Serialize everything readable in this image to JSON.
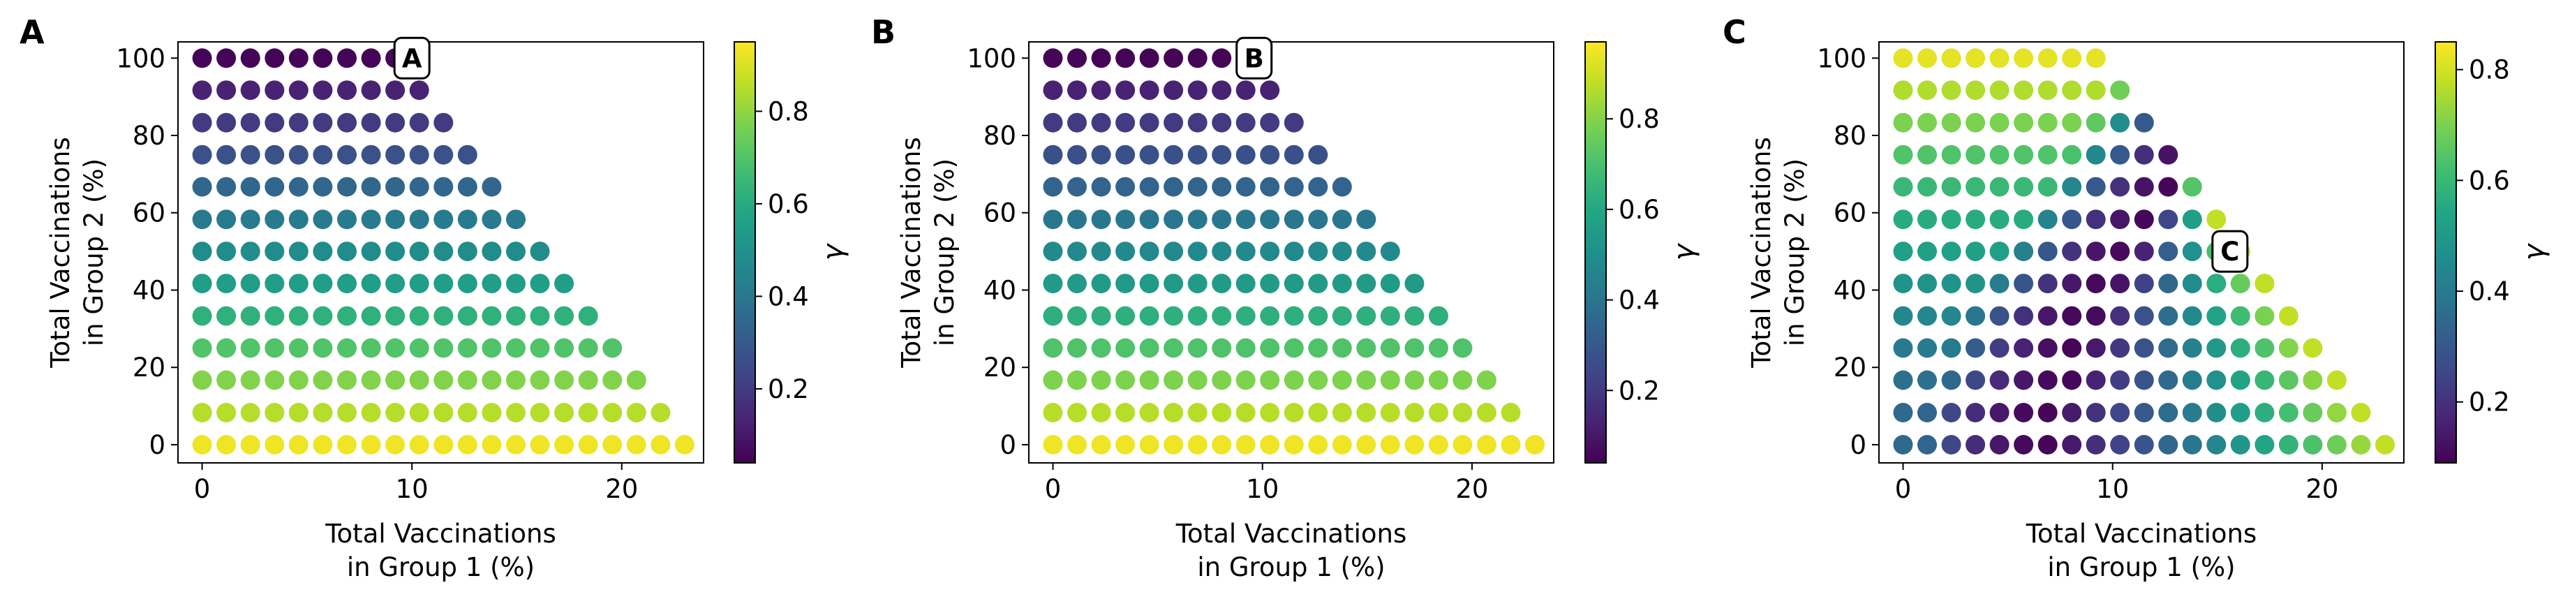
{
  "chart_data": [
    {
      "type": "scatter",
      "panel_label": "A",
      "badge": "A",
      "badge_at": [
        10,
        100
      ],
      "xlabel": [
        "Total Vaccinations",
        "in Group 1 (%)"
      ],
      "ylabel": [
        "Total Vaccinations",
        "in Group 2 (%)"
      ],
      "xticks": [
        0,
        10,
        20
      ],
      "yticks": [
        0,
        20,
        40,
        60,
        80,
        100
      ],
      "xlim": [
        -1.15,
        23.9
      ],
      "ylim": [
        -4.7,
        104.2
      ],
      "colorbar": {
        "label": "γ",
        "ticks": [
          0.2,
          0.4,
          0.6,
          0.8
        ],
        "range": [
          0.04,
          0.95
        ]
      },
      "colormap": "viridis",
      "grid": false,
      "legend": "none",
      "x_step": 1.15,
      "y_values": [
        0,
        8.3,
        16.7,
        25,
        33.3,
        41.7,
        50,
        58.3,
        66.7,
        75,
        83.3,
        91.7,
        100
      ],
      "x_max_per_row": [
        23,
        21.85,
        20.7,
        19.55,
        18.4,
        17.25,
        16.1,
        14.95,
        13.8,
        12.65,
        11.5,
        10.35,
        9.2
      ],
      "color_model": "by_row",
      "row_colors": [
        0.93,
        0.85,
        0.78,
        0.7,
        0.62,
        0.55,
        0.48,
        0.41,
        0.34,
        0.27,
        0.2,
        0.13,
        0.05
      ],
      "point_count": 234
    },
    {
      "type": "scatter",
      "panel_label": "B",
      "badge": "B",
      "badge_at": [
        9.6,
        100
      ],
      "xlabel": [
        "Total Vaccinations",
        "in Group 1 (%)"
      ],
      "ylabel": [
        "Total Vaccinations",
        "in Group 2 (%)"
      ],
      "xticks": [
        0,
        10,
        20
      ],
      "yticks": [
        0,
        20,
        40,
        60,
        80,
        100
      ],
      "xlim": [
        -1.15,
        23.9
      ],
      "ylim": [
        -4.7,
        104.2
      ],
      "colorbar": {
        "label": "γ",
        "ticks": [
          0.2,
          0.4,
          0.6,
          0.8
        ],
        "range": [
          0.04,
          0.97
        ]
      },
      "colormap": "viridis",
      "grid": false,
      "legend": "none",
      "x_step": 1.15,
      "y_values": [
        0,
        8.3,
        16.7,
        25,
        33.3,
        41.7,
        50,
        58.3,
        66.7,
        75,
        83.3,
        91.7,
        100
      ],
      "x_max_per_row": [
        23,
        21.85,
        20.7,
        19.55,
        18.4,
        17.25,
        16.1,
        14.95,
        13.8,
        12.65,
        11.5,
        10.35,
        9.2
      ],
      "color_model": "by_row",
      "row_colors": [
        0.95,
        0.87,
        0.79,
        0.71,
        0.63,
        0.55,
        0.48,
        0.41,
        0.34,
        0.27,
        0.2,
        0.13,
        0.05
      ],
      "point_count": 234
    },
    {
      "type": "scatter",
      "panel_label": "C",
      "badge": "C",
      "badge_at": [
        15.6,
        50
      ],
      "xlabel": [
        "Total Vaccinations",
        "in Group 1 (%)"
      ],
      "ylabel": [
        "Total Vaccinations",
        "in Group 2 (%)"
      ],
      "xticks": [
        0,
        10,
        20
      ],
      "yticks": [
        0,
        20,
        40,
        60,
        80,
        100
      ],
      "xlim": [
        -1.15,
        23.9
      ],
      "ylim": [
        -4.7,
        104.2
      ],
      "colorbar": {
        "label": "γ",
        "ticks": [
          0.2,
          0.4,
          0.6,
          0.8
        ],
        "range": [
          0.09,
          0.85
        ]
      },
      "colormap": "viridis",
      "grid": false,
      "legend": "none",
      "x_step": 1.15,
      "y_values": [
        0,
        8.3,
        16.7,
        25,
        33.3,
        41.7,
        50,
        58.3,
        66.7,
        75,
        83.3,
        91.7,
        100
      ],
      "x_max_per_row": [
        23,
        21.85,
        20.7,
        19.55,
        18.4,
        17.25,
        16.1,
        14.95,
        13.8,
        12.65,
        11.5,
        10.35,
        9.2
      ],
      "color_model": "valley",
      "valley_center_x_per_row": [
        7,
        7,
        8,
        8.5,
        9,
        10,
        11,
        12,
        13,
        14,
        15,
        16,
        17
      ],
      "valley_min": 0.1,
      "row_base_colors": [
        0.35,
        0.35,
        0.37,
        0.4,
        0.44,
        0.48,
        0.52,
        0.56,
        0.6,
        0.64,
        0.7,
        0.76,
        0.82
      ],
      "valley_width": 6,
      "point_count": 234
    }
  ]
}
